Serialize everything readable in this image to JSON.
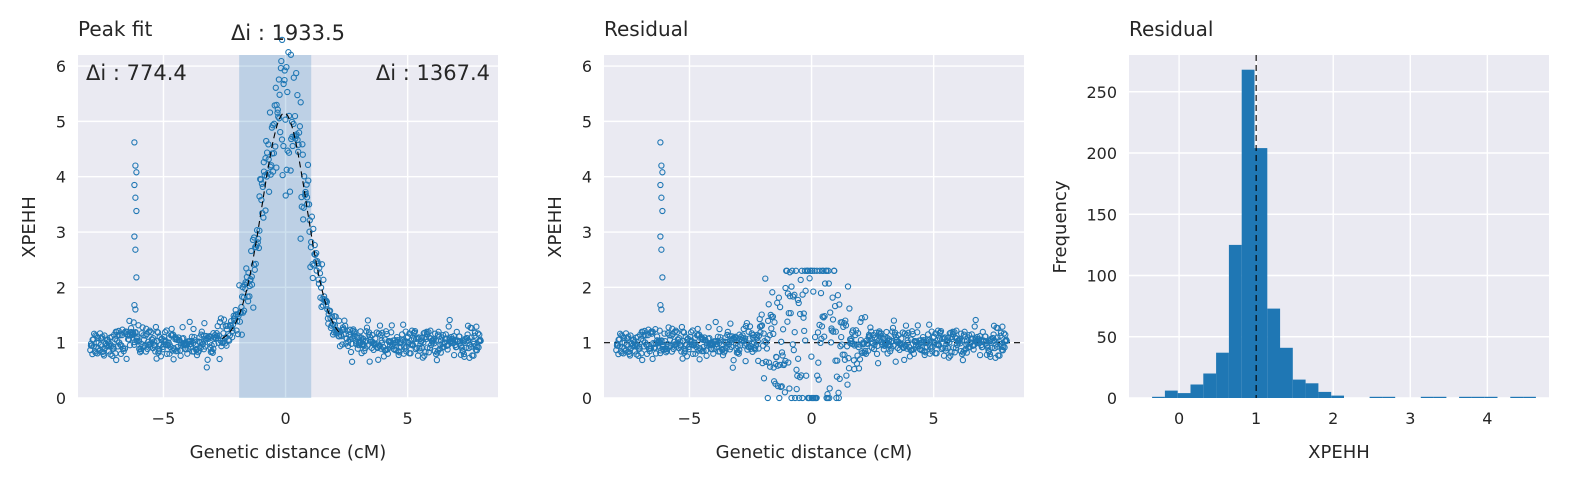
{
  "chart_data": [
    {
      "type": "scatter",
      "title": "Peak fit",
      "xlabel": "Genetic distance (cM)",
      "ylabel": "XPEHH",
      "xlim": [
        -8.5,
        8.7
      ],
      "ylim": [
        0,
        6.2
      ],
      "xticks": [
        -5,
        0,
        5
      ],
      "xtick_labels": [
        "−5",
        "0",
        "5"
      ],
      "yticks": [
        0,
        1,
        2,
        3,
        4,
        5,
        6
      ],
      "ytick_labels": [
        "0",
        "1",
        "2",
        "3",
        "4",
        "5",
        "6"
      ],
      "grid": true,
      "highlight_region": [
        -1.9,
        1.05
      ],
      "baseline": 1.0,
      "annotations": {
        "left": "Δi : 774.4",
        "center": "Δi : 1933.5",
        "right": "Δi : 1367.4"
      },
      "peak_fit": {
        "center": -0.05,
        "amplitude": 4.15,
        "sigma": 0.9,
        "baseline": 1.0
      },
      "spike": {
        "x": -6.15,
        "values": [
          4.62,
          4.2,
          4.08,
          3.85,
          3.62,
          3.38,
          2.92,
          2.68,
          2.18,
          1.68,
          1.6
        ]
      },
      "series_color": "#1f77b4"
    },
    {
      "type": "scatter",
      "title": "Residual",
      "xlabel": "Genetic distance (cM)",
      "ylabel": "XPEHH",
      "xlim": [
        -8.5,
        8.7
      ],
      "ylim": [
        0,
        6.2
      ],
      "xticks": [
        -5,
        0,
        5
      ],
      "xtick_labels": [
        "−5",
        "0",
        "5"
      ],
      "yticks": [
        0,
        1,
        2,
        3,
        4,
        5,
        6
      ],
      "ytick_labels": [
        "0",
        "1",
        "2",
        "3",
        "4",
        "5",
        "6"
      ],
      "grid": true,
      "baseline": 1.0,
      "spike": {
        "x": -6.15,
        "values": [
          4.62,
          4.2,
          4.08,
          3.85,
          3.62,
          3.38,
          2.92,
          2.68,
          2.18,
          1.68,
          1.6
        ]
      },
      "series_color": "#1f77b4"
    },
    {
      "type": "bar",
      "title": "Residual",
      "xlabel": "XPEHH",
      "ylabel": "Frequency",
      "xlim": [
        -0.65,
        4.8
      ],
      "ylim": [
        0,
        280
      ],
      "xticks": [
        0,
        1,
        2,
        3,
        4
      ],
      "xtick_labels": [
        "0",
        "1",
        "2",
        "3",
        "4"
      ],
      "yticks": [
        0,
        50,
        100,
        150,
        200,
        250
      ],
      "ytick_labels": [
        "0",
        "50",
        "100",
        "150",
        "200",
        "250"
      ],
      "grid": true,
      "bin_width": 0.166,
      "bin_start": -0.35,
      "values": [
        1,
        6,
        4,
        11,
        20,
        37,
        125,
        268,
        204,
        73,
        41,
        15,
        12,
        5,
        2,
        0,
        0,
        1,
        1,
        0,
        0,
        1,
        1,
        0,
        1,
        1,
        1,
        0,
        1,
        1
      ],
      "vline": 1.0,
      "series_color": "#1f77b4"
    }
  ]
}
